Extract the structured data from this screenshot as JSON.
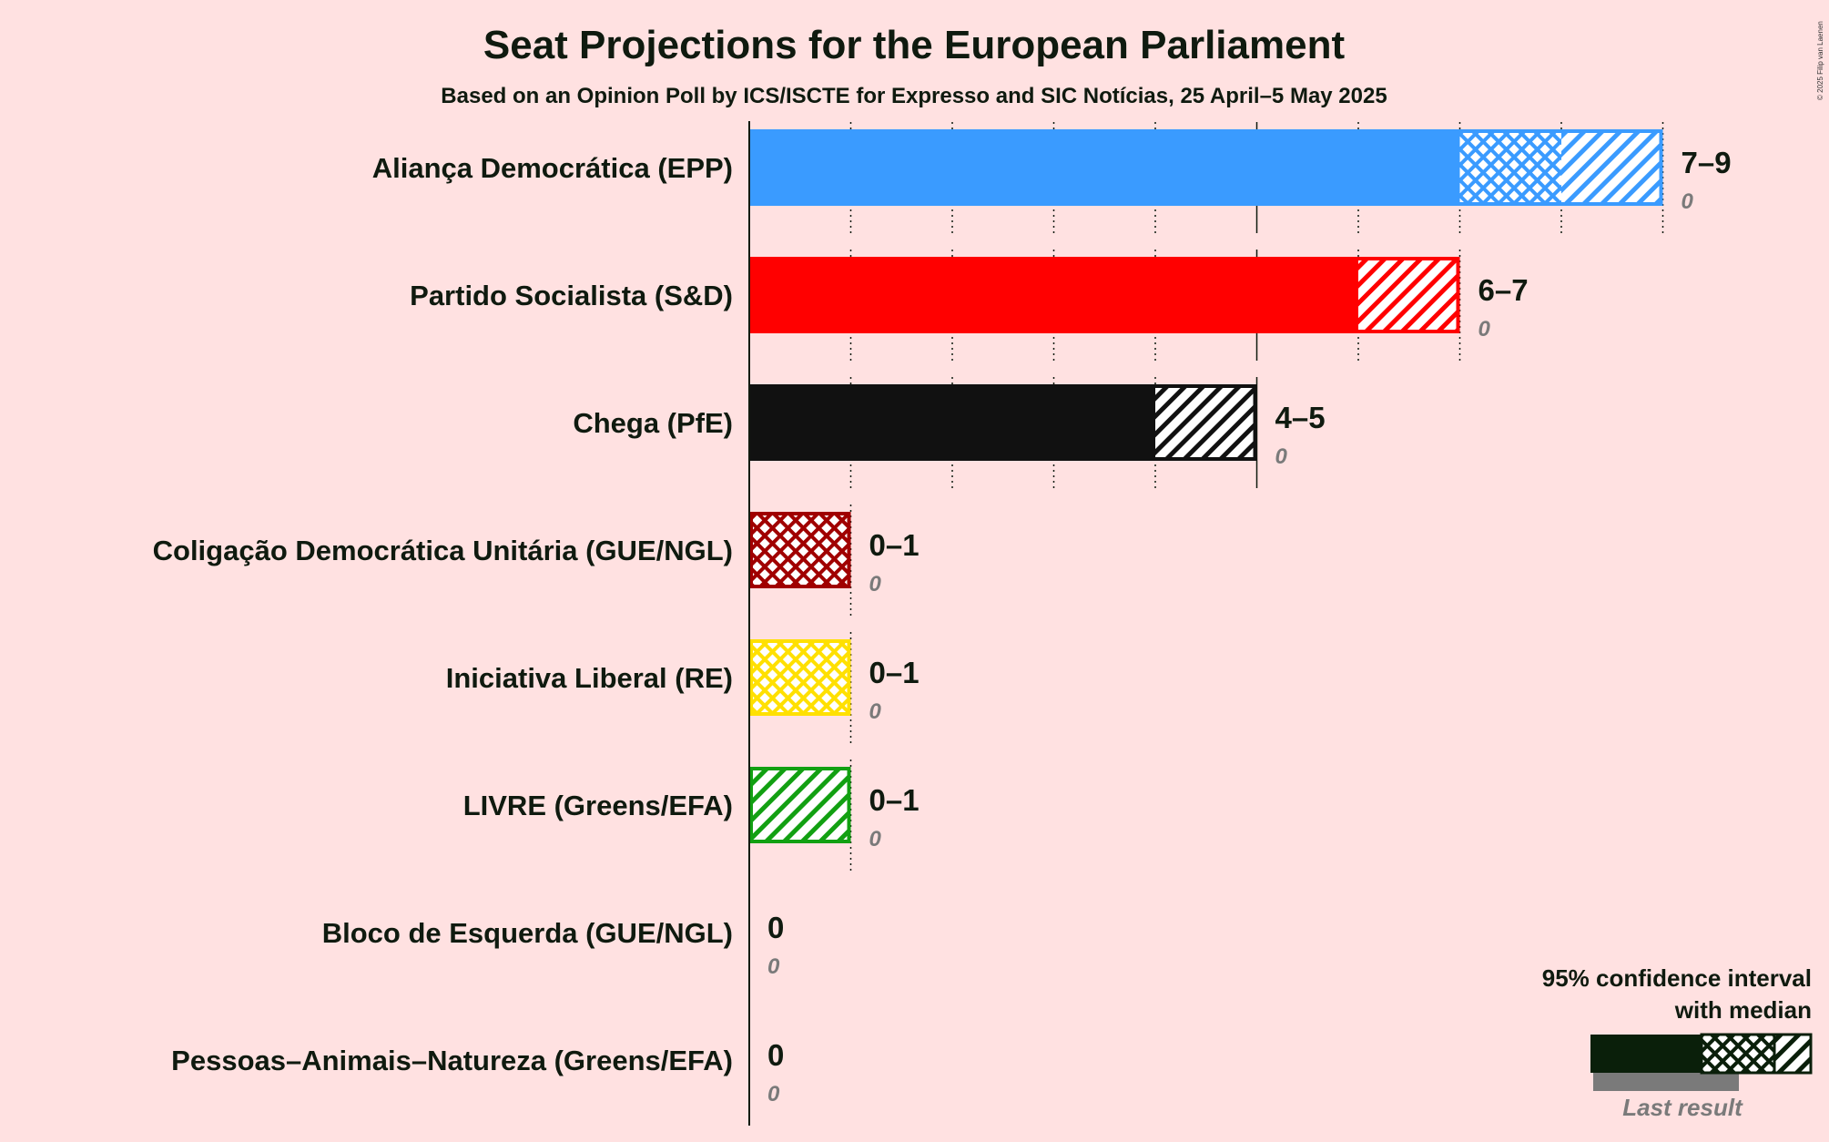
{
  "title": "Seat Projections for the European Parliament",
  "subtitle": "Based on an Opinion Poll by ICS/ISCTE for Expresso and SIC Notícias, 25 April–5 May 2025",
  "copyright": "© 2025 Filip van Laenen",
  "legend": {
    "title_line1": "95% confidence interval",
    "title_line2": "with median",
    "last_result": "Last result"
  },
  "colors": {
    "background": "#ffe1e1",
    "text": "#0f1a0f",
    "last_result": "#7a7a7a",
    "legend_bar": "#0a1f0a"
  },
  "chart_data": {
    "type": "bar",
    "orientation": "horizontal",
    "x_range": [
      0,
      9
    ],
    "gridline_step": 1,
    "parties": [
      {
        "name": "Aliança Democrática (EPP)",
        "color": "#3a9bff",
        "low": 7,
        "median": 8,
        "high": 9,
        "range_label": "7–9",
        "last_result": 0,
        "last_label": "0"
      },
      {
        "name": "Partido Socialista (S&D)",
        "color": "#ff0000",
        "low": 6,
        "median": 6,
        "high": 7,
        "range_label": "6–7",
        "last_result": 0,
        "last_label": "0"
      },
      {
        "name": "Chega (PfE)",
        "color": "#111111",
        "low": 4,
        "median": 4,
        "high": 5,
        "range_label": "4–5",
        "last_result": 0,
        "last_label": "0"
      },
      {
        "name": "Coligação Democrática Unitária (GUE/NGL)",
        "color": "#a00000",
        "low": 0,
        "median": 1,
        "high": 1,
        "range_label": "0–1",
        "last_result": 0,
        "last_label": "0"
      },
      {
        "name": "Iniciativa Liberal (RE)",
        "color": "#ffe000",
        "low": 0,
        "median": 1,
        "high": 1,
        "range_label": "0–1",
        "last_result": 0,
        "last_label": "0"
      },
      {
        "name": "LIVRE (Greens/EFA)",
        "color": "#12a012",
        "low": 0,
        "median": 0,
        "high": 1,
        "range_label": "0–1",
        "last_result": 0,
        "last_label": "0"
      },
      {
        "name": "Bloco de Esquerda (GUE/NGL)",
        "color": "#c80028",
        "low": 0,
        "median": 0,
        "high": 0,
        "range_label": "0",
        "last_result": 0,
        "last_label": "0"
      },
      {
        "name": "Pessoas–Animais–Natureza (Greens/EFA)",
        "color": "#1e8c6e",
        "low": 0,
        "median": 0,
        "high": 0,
        "range_label": "0",
        "last_result": 0,
        "last_label": "0"
      }
    ]
  }
}
